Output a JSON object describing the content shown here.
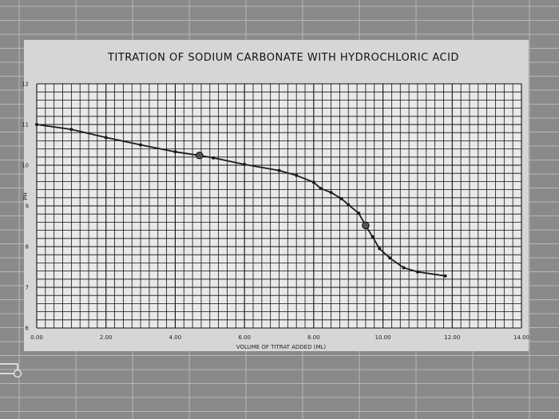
{
  "chart_data": {
    "type": "line",
    "title": "TITRATION OF SODIUM CARBONATE WITH HYDROCHLORIC ACID",
    "xlabel": "VOLUME OF TITRAT ADDED (ML)",
    "ylabel": "PH",
    "xlim": [
      0,
      14
    ],
    "ylim": [
      6,
      12
    ],
    "x_ticks": [
      "0.00",
      "2.00",
      "4.00",
      "6.00",
      "8.00",
      "10.00",
      "12.00",
      "14.00"
    ],
    "y_ticks": [
      "6",
      "7",
      "8",
      "9",
      "10",
      "11",
      "12"
    ],
    "grid": true,
    "legend": "none",
    "series": [
      {
        "x": [
          0.0,
          1.0,
          2.0,
          3.0,
          4.0,
          4.7,
          5.1,
          6.0,
          7.0,
          7.5,
          8.0,
          8.2,
          8.5,
          8.8,
          9.0,
          9.3,
          9.5,
          9.7,
          9.9,
          10.2,
          10.6,
          11.0,
          11.8
        ],
        "y": [
          11.0,
          10.88,
          10.68,
          10.5,
          10.33,
          10.24,
          10.18,
          10.02,
          9.87,
          9.75,
          9.58,
          9.43,
          9.33,
          9.18,
          9.03,
          8.82,
          8.52,
          8.24,
          7.95,
          7.72,
          7.48,
          7.38,
          7.28
        ]
      }
    ],
    "highlight_points": [
      {
        "x": 4.7,
        "y": 10.24
      },
      {
        "x": 9.5,
        "y": 8.52
      }
    ],
    "colors": {
      "line": "#1a1a1a",
      "grid": "#111111",
      "plot_bg": "#e9e9e9",
      "card_bg": "#d6d6d6"
    }
  }
}
